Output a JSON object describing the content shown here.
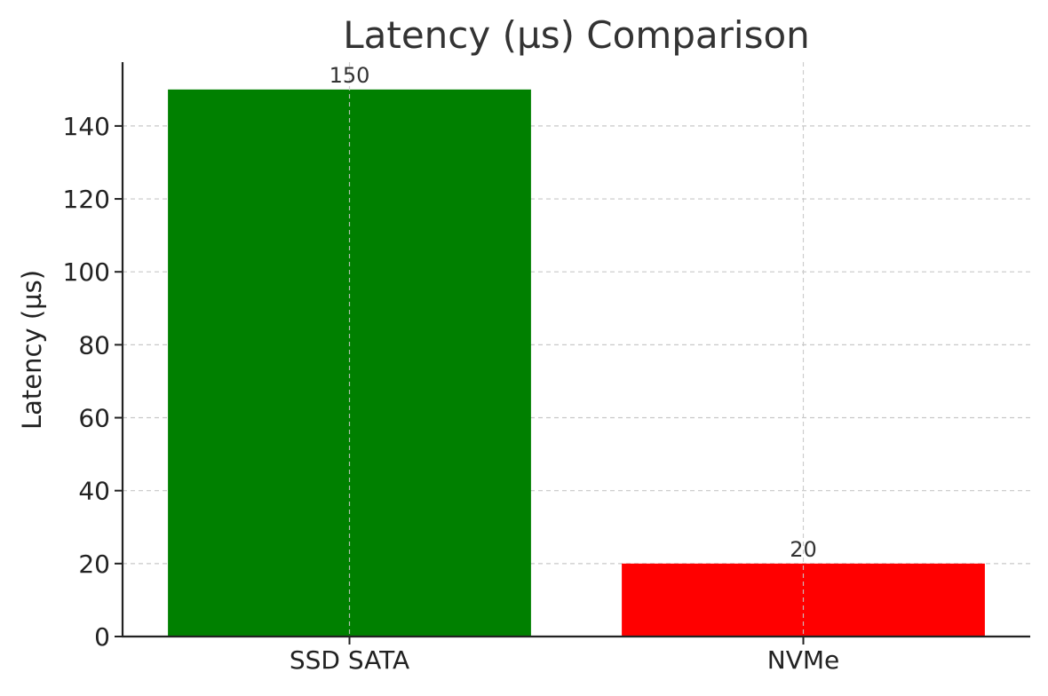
{
  "chart_data": {
    "type": "bar",
    "title": "Latency (µs) Comparison",
    "xlabel": "",
    "ylabel": "Latency (µs)",
    "categories": [
      "SSD SATA",
      "NVMe"
    ],
    "values": [
      150,
      20
    ],
    "colors": [
      "#008000",
      "#ff0000"
    ],
    "data_labels": [
      "150",
      "20"
    ],
    "ylim": [
      0,
      157.5
    ],
    "yticks": [
      0,
      20,
      40,
      60,
      80,
      100,
      120,
      140
    ],
    "ytick_labels": [
      "0",
      "20",
      "40",
      "60",
      "80",
      "100",
      "120",
      "140"
    ],
    "grid": true,
    "legend": "none"
  }
}
